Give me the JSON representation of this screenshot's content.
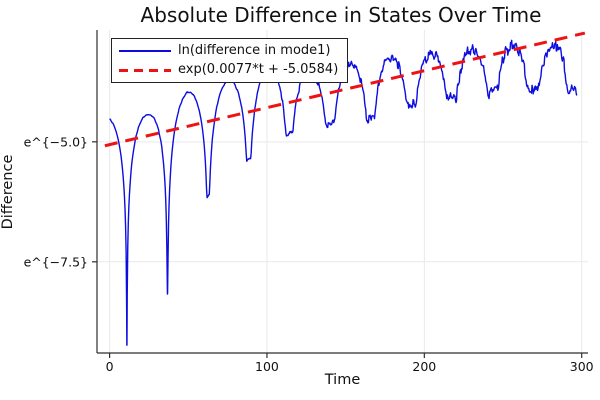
{
  "window": {
    "title": "Absolute Difference in States Over Time"
  },
  "chart_data": {
    "type": "line",
    "title": "Absolute Difference in States Over Time",
    "xlabel": "Time",
    "ylabel": "Difference",
    "grid": true,
    "x_axis": {
      "lim": [
        -8,
        304
      ],
      "ticks": [
        0,
        100,
        200,
        300
      ],
      "tick_labels": [
        "0",
        "100",
        "200",
        "300"
      ]
    },
    "y_axis": {
      "scale": "ln",
      "lim_ln": [
        -9.4,
        -2.67
      ],
      "ticks_ln": [
        -5.0,
        -7.5
      ],
      "tick_labels": [
        "e^{−5.0}",
        "e^{−7.5}"
      ]
    },
    "legend": {
      "position": "top-left",
      "entries": [
        "ln(difference in mode1)",
        "exp(0.0077*t + -5.0584)"
      ]
    },
    "colors": {
      "series1": "#0d0de0",
      "series2": "#ef1212",
      "grid": "#e9e9e9",
      "spine": "#2e2e2e",
      "text": "#111111"
    },
    "series": [
      {
        "name": "ln(difference in mode1)",
        "kind": "noisy-log-oscillation",
        "color_key": "series1",
        "style": "solid",
        "line_width": 1.4,
        "t_range": [
          0,
          297
        ],
        "cusp_start": 11,
        "cusp_spacing": 25.8,
        "envelope_peaks_t_ln": [
          [
            0,
            -4.5
          ],
          [
            24,
            -4.44
          ],
          [
            50,
            -3.96
          ],
          [
            74,
            -3.75
          ],
          [
            100,
            -3.44
          ],
          [
            129,
            -3.56
          ],
          [
            157,
            -3.35
          ],
          [
            181,
            -3.25
          ],
          [
            209,
            -3.13
          ],
          [
            237,
            -3.02
          ],
          [
            265,
            -2.98
          ],
          [
            297,
            -3.04
          ]
        ],
        "dip_floor_t_ln": [
          [
            0,
            -9.3
          ],
          [
            11,
            -9.23
          ],
          [
            37,
            -8.15
          ],
          [
            62,
            -6.15
          ],
          [
            88,
            -5.37
          ],
          [
            114,
            -4.83
          ],
          [
            144,
            -4.58
          ],
          [
            170,
            -4.48
          ],
          [
            198,
            -4.12
          ],
          [
            225,
            -4.06
          ],
          [
            255,
            -3.87
          ],
          [
            282,
            -3.96
          ],
          [
            297,
            -3.9
          ]
        ],
        "noise_amp_t_a": [
          [
            0,
            0.015
          ],
          [
            90,
            0.025
          ],
          [
            120,
            0.09
          ],
          [
            160,
            0.13
          ],
          [
            210,
            0.17
          ],
          [
            297,
            0.2
          ]
        ]
      },
      {
        "name": "exp(0.0077*t + -5.0584)",
        "kind": "exponential-fit",
        "color_key": "series2",
        "style": "dashed",
        "line_width": 3,
        "dash": [
          13,
          8
        ],
        "slope": 0.0077,
        "intercept": -5.0584,
        "t_range": [
          -3,
          302
        ]
      }
    ]
  }
}
